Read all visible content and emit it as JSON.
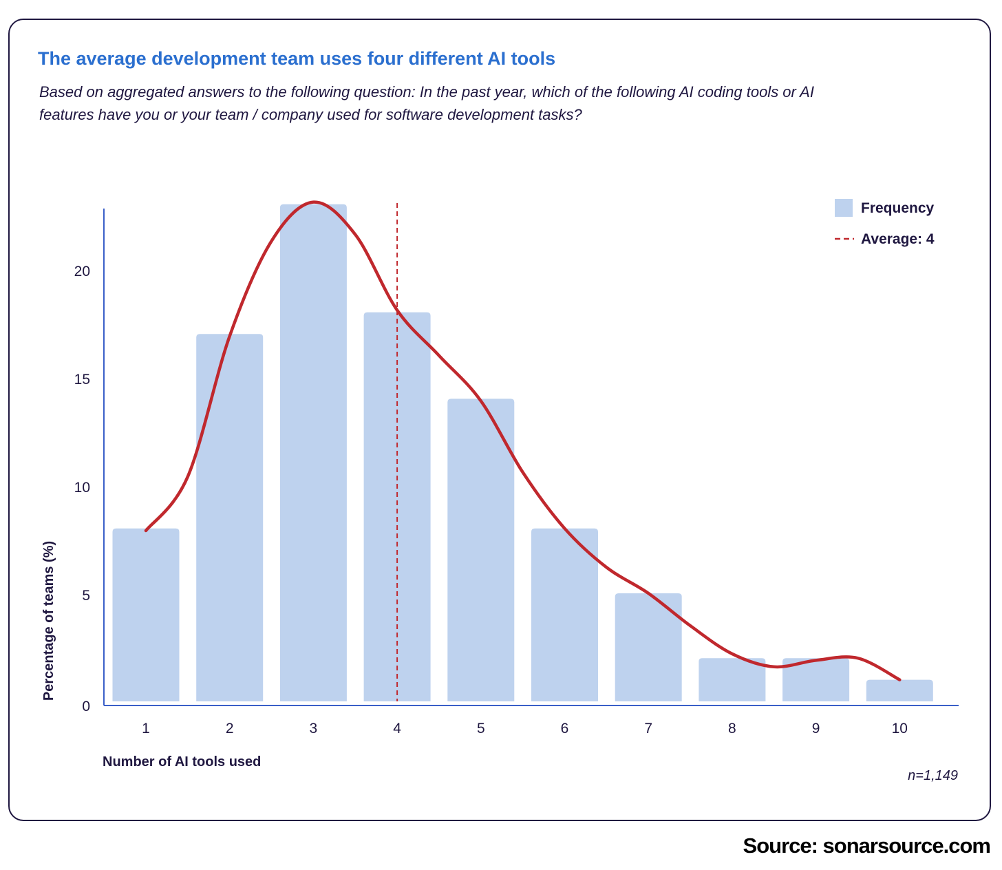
{
  "chart_data": {
    "type": "bar",
    "title": "The average development team uses four different AI tools",
    "subtitle": "Based on aggregated answers to the following question: In the past year, which of the following AI coding tools or AI features have you or your team / company used for software development tasks?",
    "xlabel": "Number of AI tools used",
    "ylabel": "Percentage of teams (%)",
    "categories": [
      "1",
      "2",
      "3",
      "4",
      "5",
      "6",
      "7",
      "8",
      "9",
      "10"
    ],
    "series": [
      {
        "name": "Frequency",
        "values": [
          8,
          17,
          23,
          18,
          14,
          8,
          5,
          2,
          2,
          1
        ]
      }
    ],
    "smoothed_line": {
      "x": [
        1,
        1.5,
        2,
        2.5,
        3,
        3.5,
        4,
        4.5,
        5,
        5.5,
        6,
        6.5,
        7,
        7.5,
        8,
        8.5,
        9,
        9.5,
        10
      ],
      "y": [
        7.9,
        10.4,
        16.9,
        21.3,
        23.1,
        21.6,
        18.1,
        16.0,
        13.9,
        10.6,
        8.0,
        6.2,
        5.0,
        3.5,
        2.2,
        1.6,
        1.9,
        2.0,
        1.0
      ]
    },
    "average": {
      "label": "Average: 4",
      "value": 4
    },
    "yticks": [
      0,
      5,
      10,
      15,
      20
    ],
    "ylim": [
      0,
      23
    ],
    "legend_position": "top-right",
    "note": "n=1,149",
    "colors": {
      "bar": "#bed2ee",
      "line": "#c0282d",
      "average": "#c0282d",
      "axis": "#3a5fc8",
      "title": "#2b6fcf",
      "text": "#1f1740"
    }
  },
  "source": "Source: sonarsource.com"
}
